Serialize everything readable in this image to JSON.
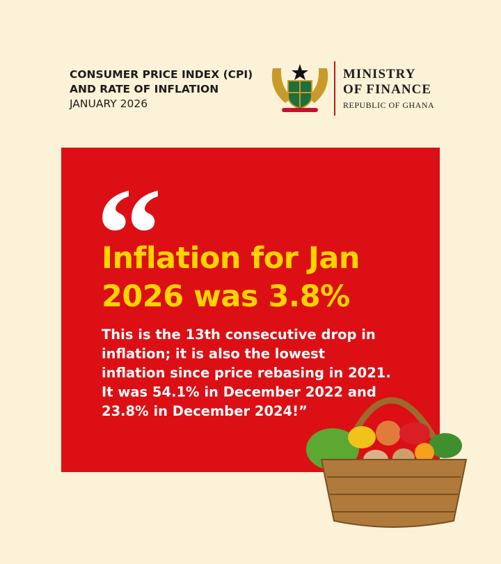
{
  "header": {
    "title_lines": [
      "CONSUMER PRICE INDEX (CPI)",
      "AND RATE OF INFLATION",
      "JANUARY 2026"
    ],
    "ministry_lines": [
      "MINISTRY",
      "OF FINANCE"
    ],
    "ministry_subtitle": "REPUBLIC OF GHANA"
  },
  "quote": {
    "mark": "“",
    "headline_lines": [
      "Inflation for Jan",
      "2026 was 3.8%"
    ],
    "body_lines": [
      "This is the 13th consecutive drop in",
      "inflation; it is also the lowest",
      "inflation since price rebasing in 2021.",
      "It was 54.1% in December 2022 and",
      "23.8% in December 2024!”"
    ]
  }
}
